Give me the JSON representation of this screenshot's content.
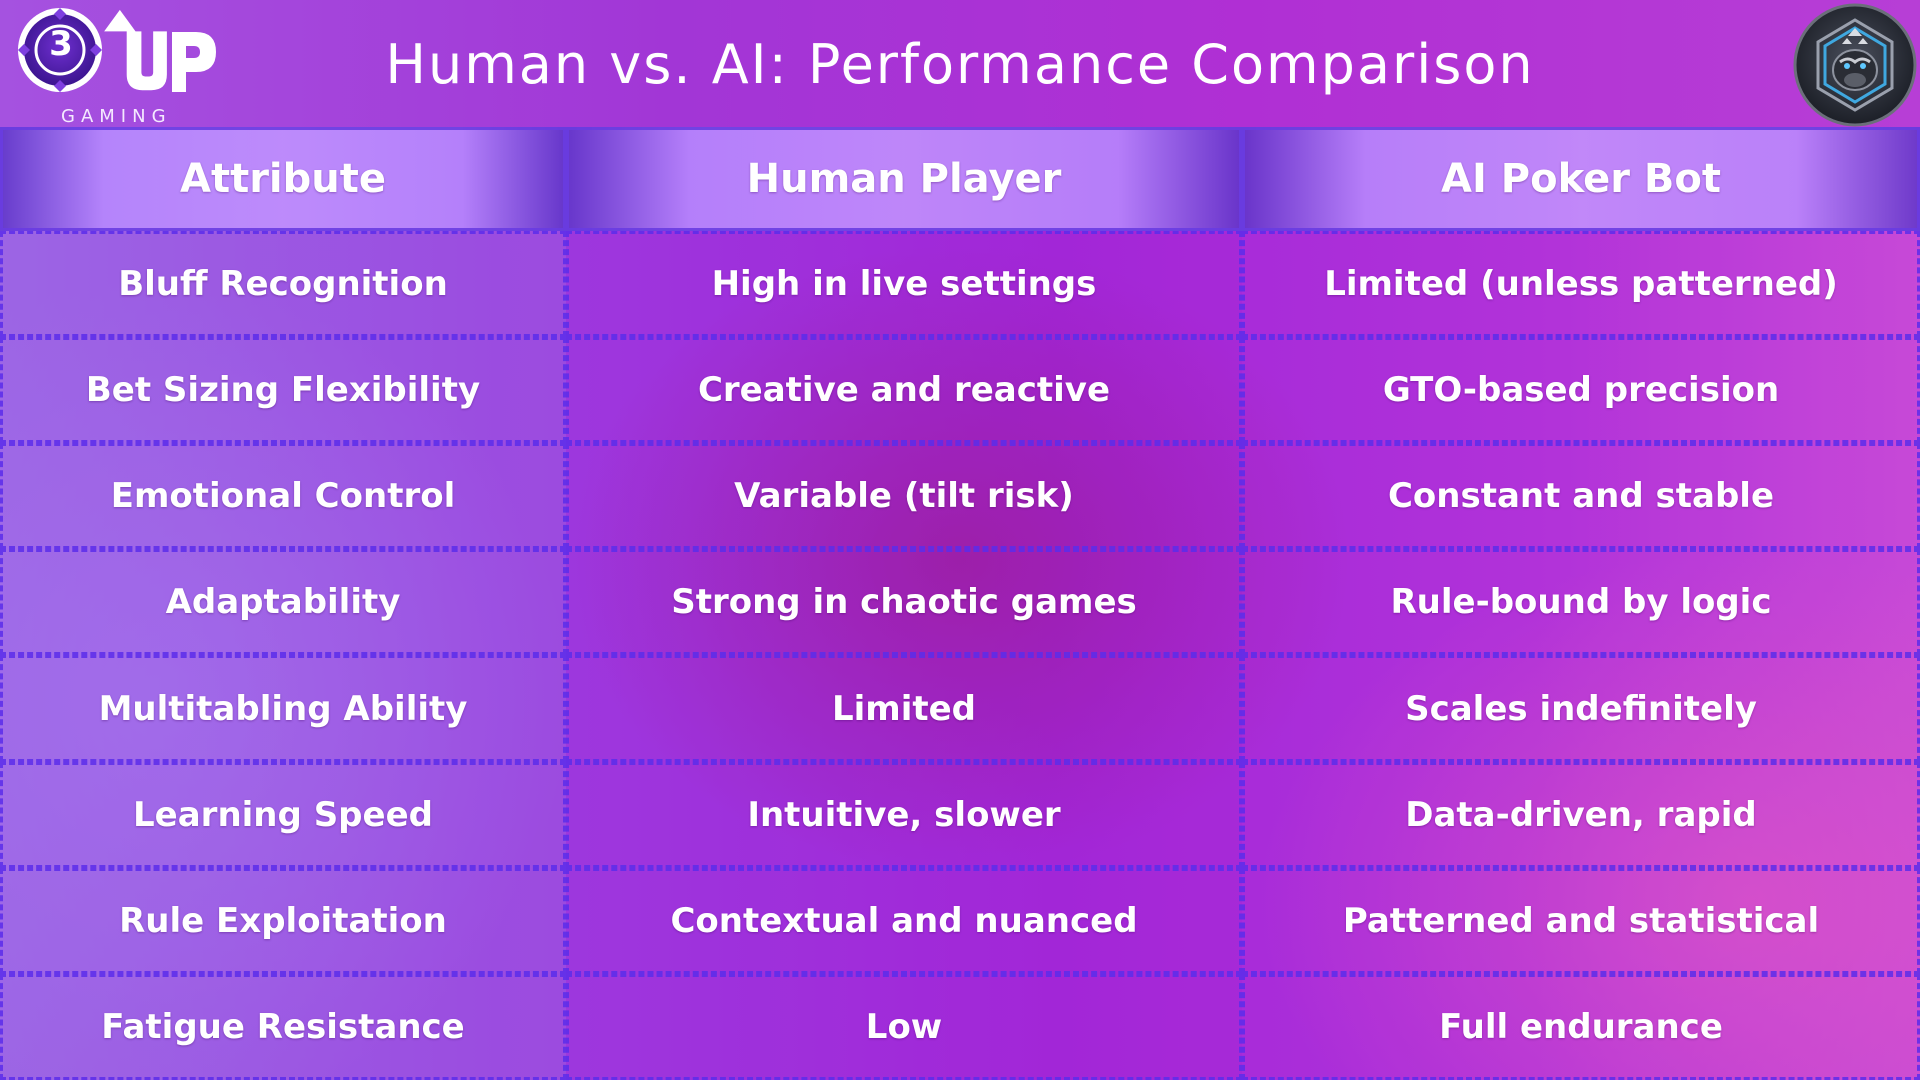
{
  "header": {
    "title": "Human vs. AI: Performance Comparison"
  },
  "brand": {
    "badge_number": "3",
    "logo_text": "UP",
    "tagline": "GAMING",
    "icon": "poker-chip-icon"
  },
  "emblem": {
    "icon": "gorilla-mascot-icon"
  },
  "colors": {
    "background_purple": "#a126d8",
    "header_cell": "#b98cff",
    "grid_dash": "#5c2deb",
    "text": "#ffffff"
  },
  "table": {
    "columns": [
      "Attribute",
      "Human Player",
      "AI Poker Bot"
    ],
    "rows": [
      [
        "Bluff Recognition",
        "High in live settings",
        "Limited (unless patterned)"
      ],
      [
        "Bet Sizing Flexibility",
        "Creative and reactive",
        "GTO-based precision"
      ],
      [
        "Emotional Control",
        "Variable (tilt risk)",
        "Constant and stable"
      ],
      [
        "Adaptability",
        "Strong in chaotic games",
        "Rule-bound by logic"
      ],
      [
        "Multitabling Ability",
        "Limited",
        "Scales indefinitely"
      ],
      [
        "Learning Speed",
        "Intuitive, slower",
        "Data-driven, rapid"
      ],
      [
        "Rule Exploitation",
        "Contextual and nuanced",
        "Patterned and statistical"
      ],
      [
        "Fatigue Resistance",
        "Low",
        "Full endurance"
      ]
    ]
  }
}
